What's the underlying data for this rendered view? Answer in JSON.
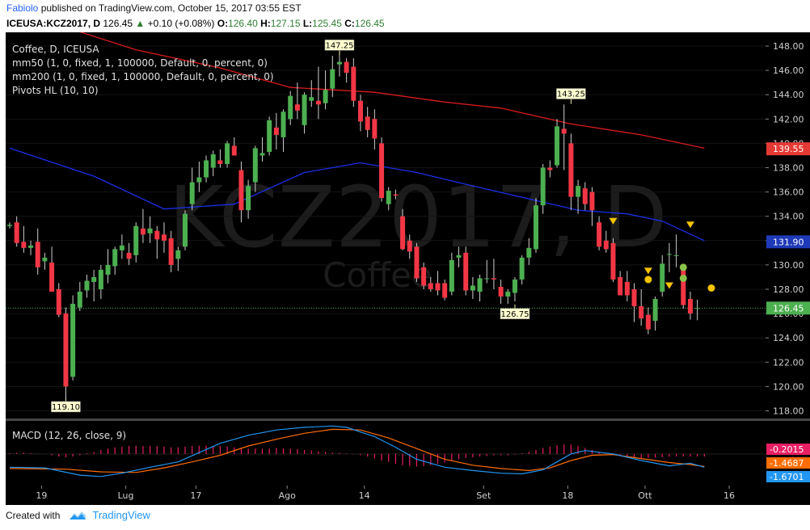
{
  "header": {
    "author": "Fabiolo",
    "published": "published on TradingView.com, October 15, 2017 03:55 EST",
    "symbol": "ICEUSA:KCZ2017, D",
    "last": "126.45",
    "change_arrow": "▲",
    "change": "+0.10 (+0.08%)",
    "o_label": "O:",
    "o": "126.40",
    "h_label": "H:",
    "h": "127.15",
    "l_label": "L:",
    "l": "125.45",
    "c_label": "C:",
    "c": "126.45"
  },
  "legend": {
    "line1": "Coffee, D, ICEUSA",
    "line2": "mm50 (1, 0, fixed, 1, 100000, Default, 0, percent, 0)",
    "line3": "mm200 (1, 0, fixed, 1, 100000, Default, 0, percent, 0)",
    "line4": "Pivots HL (10, 10)"
  },
  "watermark": {
    "symbol": "KCZ2017, D",
    "name": "Coffee"
  },
  "macd_label": "MACD (12, 26, close, 9)",
  "footer": {
    "created_with": "Created with",
    "brand": "TradingView"
  },
  "colors": {
    "background": "#000000",
    "up": "#4caf50",
    "down": "#f23645",
    "mm50": "#1a2ee8",
    "mm200": "#d81b1b",
    "macd_line": "#2196f3",
    "signal_line": "#ff6d00",
    "histogram": "#e91e63",
    "pivot_high": "#f5c400",
    "pivot_low": "#8bc34a"
  },
  "chart_data": {
    "type": "candlestick",
    "title": "Coffee, D, ICEUSA",
    "ylim": [
      117.5,
      149
    ],
    "y_ticks": [
      "148.00",
      "146.00",
      "144.00",
      "142.00",
      "140.00",
      "138.00",
      "136.00",
      "134.00",
      "132.00",
      "130.00",
      "128.00",
      "126.00",
      "124.00",
      "122.00",
      "120.00",
      "118.00"
    ],
    "x_ticks": [
      "19",
      "Lug",
      "17",
      "Ago",
      "14",
      "Set",
      "18",
      "Ott",
      "16"
    ],
    "candles": [
      {
        "o": 133.2,
        "h": 133.5,
        "l": 133.0,
        "c": 133.3
      },
      {
        "o": 133.5,
        "h": 134.0,
        "l": 131.5,
        "c": 131.8
      },
      {
        "o": 131.9,
        "h": 133.2,
        "l": 131.0,
        "c": 131.4
      },
      {
        "o": 131.4,
        "h": 132.0,
        "l": 130.8,
        "c": 131.6
      },
      {
        "o": 131.9,
        "h": 133.0,
        "l": 129.2,
        "c": 129.8
      },
      {
        "o": 130.3,
        "h": 131.0,
        "l": 129.6,
        "c": 130.6
      },
      {
        "o": 130.2,
        "h": 131.5,
        "l": 128.0,
        "c": 127.8
      },
      {
        "o": 128.0,
        "h": 128.5,
        "l": 125.7,
        "c": 125.9
      },
      {
        "o": 126.0,
        "h": 126.5,
        "l": 119.1,
        "c": 120.0
      },
      {
        "o": 120.8,
        "h": 127.5,
        "l": 120.5,
        "c": 126.8
      },
      {
        "o": 126.5,
        "h": 128.6,
        "l": 126.2,
        "c": 127.8
      },
      {
        "o": 127.9,
        "h": 129.2,
        "l": 127.3,
        "c": 128.7
      },
      {
        "o": 128.6,
        "h": 129.6,
        "l": 127.0,
        "c": 129.0
      },
      {
        "o": 128.0,
        "h": 130.0,
        "l": 127.2,
        "c": 129.6
      },
      {
        "o": 129.2,
        "h": 131.3,
        "l": 128.5,
        "c": 130.0
      },
      {
        "o": 129.9,
        "h": 131.5,
        "l": 129.2,
        "c": 131.3
      },
      {
        "o": 131.2,
        "h": 132.5,
        "l": 130.5,
        "c": 131.6
      },
      {
        "o": 131.0,
        "h": 131.8,
        "l": 130.0,
        "c": 130.5
      },
      {
        "o": 130.8,
        "h": 133.5,
        "l": 130.2,
        "c": 133.2
      },
      {
        "o": 133.0,
        "h": 134.6,
        "l": 131.8,
        "c": 132.5
      },
      {
        "o": 132.6,
        "h": 134.0,
        "l": 131.8,
        "c": 133.0
      },
      {
        "o": 132.8,
        "h": 133.2,
        "l": 130.5,
        "c": 132.1
      },
      {
        "o": 132.5,
        "h": 133.5,
        "l": 131.0,
        "c": 132.0
      },
      {
        "o": 132.2,
        "h": 132.8,
        "l": 129.4,
        "c": 130.0
      },
      {
        "o": 130.5,
        "h": 131.5,
        "l": 129.5,
        "c": 131.2
      },
      {
        "o": 131.5,
        "h": 134.5,
        "l": 131.2,
        "c": 134.2
      },
      {
        "o": 135.0,
        "h": 138.0,
        "l": 134.5,
        "c": 136.8
      },
      {
        "o": 136.8,
        "h": 138.5,
        "l": 136.0,
        "c": 137.2
      },
      {
        "o": 137.2,
        "h": 139.0,
        "l": 136.8,
        "c": 138.6
      },
      {
        "o": 138.0,
        "h": 139.4,
        "l": 137.3,
        "c": 139.1
      },
      {
        "o": 138.6,
        "h": 139.5,
        "l": 138.0,
        "c": 138.3
      },
      {
        "o": 138.3,
        "h": 140.2,
        "l": 138.0,
        "c": 140.0
      },
      {
        "o": 139.8,
        "h": 140.5,
        "l": 139.0,
        "c": 139.0
      },
      {
        "o": 137.8,
        "h": 138.5,
        "l": 133.5,
        "c": 134.5
      },
      {
        "o": 134.5,
        "h": 137.0,
        "l": 133.8,
        "c": 136.5
      },
      {
        "o": 136.8,
        "h": 139.8,
        "l": 136.0,
        "c": 139.6
      },
      {
        "o": 139.0,
        "h": 140.5,
        "l": 138.5,
        "c": 139.2
      },
      {
        "o": 139.3,
        "h": 142.2,
        "l": 139.0,
        "c": 141.9
      },
      {
        "o": 141.3,
        "h": 142.5,
        "l": 139.5,
        "c": 140.7
      },
      {
        "o": 140.5,
        "h": 142.8,
        "l": 139.3,
        "c": 142.6
      },
      {
        "o": 142.0,
        "h": 144.3,
        "l": 141.5,
        "c": 143.9
      },
      {
        "o": 143.2,
        "h": 145.0,
        "l": 142.0,
        "c": 142.7
      },
      {
        "o": 141.5,
        "h": 144.2,
        "l": 140.8,
        "c": 144.0
      },
      {
        "o": 143.5,
        "h": 145.2,
        "l": 143.0,
        "c": 143.8
      },
      {
        "o": 143.5,
        "h": 146.3,
        "l": 142.0,
        "c": 143.2
      },
      {
        "o": 143.3,
        "h": 146.0,
        "l": 142.8,
        "c": 144.4
      },
      {
        "o": 144.5,
        "h": 147.2,
        "l": 143.8,
        "c": 146.1
      },
      {
        "o": 146.5,
        "h": 147.5,
        "l": 145.5,
        "c": 146.7
      },
      {
        "o": 146.7,
        "h": 147.0,
        "l": 145.0,
        "c": 145.8
      },
      {
        "o": 146.3,
        "h": 147.0,
        "l": 143.0,
        "c": 143.5
      },
      {
        "o": 143.5,
        "h": 144.0,
        "l": 141.0,
        "c": 141.8
      },
      {
        "o": 142.2,
        "h": 143.0,
        "l": 140.5,
        "c": 141.1
      },
      {
        "o": 142.0,
        "h": 142.8,
        "l": 139.5,
        "c": 140.4
      },
      {
        "o": 140.0,
        "h": 140.5,
        "l": 135.2,
        "c": 135.5
      },
      {
        "o": 135.0,
        "h": 136.4,
        "l": 134.5,
        "c": 136.1
      },
      {
        "o": 135.8,
        "h": 136.2,
        "l": 135.4,
        "c": 135.7
      },
      {
        "o": 134.0,
        "h": 134.6,
        "l": 131.2,
        "c": 131.3
      },
      {
        "o": 132.0,
        "h": 132.5,
        "l": 130.5,
        "c": 131.1
      },
      {
        "o": 131.5,
        "h": 131.8,
        "l": 128.6,
        "c": 128.9
      },
      {
        "o": 129.8,
        "h": 130.2,
        "l": 128.0,
        "c": 128.3
      },
      {
        "o": 128.5,
        "h": 129.0,
        "l": 127.8,
        "c": 128.0
      },
      {
        "o": 128.5,
        "h": 129.5,
        "l": 127.5,
        "c": 127.9
      },
      {
        "o": 128.5,
        "h": 128.8,
        "l": 127.1,
        "c": 127.3
      },
      {
        "o": 127.8,
        "h": 131.0,
        "l": 127.5,
        "c": 130.4
      },
      {
        "o": 130.6,
        "h": 131.5,
        "l": 129.8,
        "c": 130.8
      },
      {
        "o": 131.0,
        "h": 131.5,
        "l": 127.5,
        "c": 127.9
      },
      {
        "o": 127.9,
        "h": 129.0,
        "l": 127.2,
        "c": 128.3
      },
      {
        "o": 127.8,
        "h": 129.2,
        "l": 127.0,
        "c": 128.9
      },
      {
        "o": 128.9,
        "h": 130.4,
        "l": 128.5,
        "c": 128.9
      },
      {
        "o": 128.9,
        "h": 130.5,
        "l": 128.0,
        "c": 128.8
      },
      {
        "o": 128.2,
        "h": 128.8,
        "l": 126.8,
        "c": 127.4
      },
      {
        "o": 127.4,
        "h": 128.0,
        "l": 126.8,
        "c": 127.8
      },
      {
        "o": 127.7,
        "h": 129.0,
        "l": 127.0,
        "c": 128.8
      },
      {
        "o": 128.8,
        "h": 130.8,
        "l": 128.4,
        "c": 130.6
      },
      {
        "o": 130.6,
        "h": 132.2,
        "l": 130.0,
        "c": 131.4
      },
      {
        "o": 131.3,
        "h": 135.5,
        "l": 131.0,
        "c": 134.9
      },
      {
        "o": 134.9,
        "h": 138.3,
        "l": 134.2,
        "c": 138.0
      },
      {
        "o": 138.0,
        "h": 138.6,
        "l": 137.2,
        "c": 137.8
      },
      {
        "o": 138.2,
        "h": 142.0,
        "l": 138.0,
        "c": 141.4
      },
      {
        "o": 141.2,
        "h": 143.2,
        "l": 137.8,
        "c": 140.8
      },
      {
        "o": 140.0,
        "h": 140.8,
        "l": 134.5,
        "c": 135.6
      },
      {
        "o": 135.6,
        "h": 137.0,
        "l": 134.2,
        "c": 136.5
      },
      {
        "o": 136.3,
        "h": 136.8,
        "l": 134.5,
        "c": 135.0
      },
      {
        "o": 136.0,
        "h": 136.4,
        "l": 133.2,
        "c": 134.5
      },
      {
        "o": 133.5,
        "h": 134.0,
        "l": 131.2,
        "c": 131.5
      },
      {
        "o": 132.0,
        "h": 132.8,
        "l": 131.0,
        "c": 131.3
      },
      {
        "o": 131.8,
        "h": 132.2,
        "l": 128.6,
        "c": 128.8
      },
      {
        "o": 129.0,
        "h": 129.5,
        "l": 127.5,
        "c": 127.5
      },
      {
        "o": 128.6,
        "h": 129.5,
        "l": 127.0,
        "c": 127.5
      },
      {
        "o": 128.0,
        "h": 128.5,
        "l": 125.3,
        "c": 126.6
      },
      {
        "o": 126.6,
        "h": 128.0,
        "l": 125.0,
        "c": 125.6
      },
      {
        "o": 125.9,
        "h": 126.5,
        "l": 124.3,
        "c": 124.7
      },
      {
        "o": 125.4,
        "h": 127.4,
        "l": 124.6,
        "c": 127.2
      },
      {
        "o": 127.8,
        "h": 130.8,
        "l": 127.4,
        "c": 130.1
      },
      {
        "o": 130.9,
        "h": 131.8,
        "l": 129.4,
        "c": 130.9
      },
      {
        "o": 130.8,
        "h": 132.5,
        "l": 129.8,
        "c": 130.8
      },
      {
        "o": 129.9,
        "h": 130.1,
        "l": 126.4,
        "c": 126.7
      },
      {
        "o": 127.2,
        "h": 127.8,
        "l": 125.5,
        "c": 126.0
      },
      {
        "o": 126.4,
        "h": 127.15,
        "l": 125.45,
        "c": 126.45
      }
    ],
    "mm50": [
      [
        0,
        139.6
      ],
      [
        12,
        137.3
      ],
      [
        22,
        134.6
      ],
      [
        32,
        135.0
      ],
      [
        42,
        137.6
      ],
      [
        50,
        138.4
      ],
      [
        58,
        137.6
      ],
      [
        66,
        136.5
      ],
      [
        75,
        135.3
      ],
      [
        81,
        134.5
      ],
      [
        88,
        134.2
      ],
      [
        93,
        133.6
      ],
      [
        99,
        132.0
      ]
    ],
    "mm200": [
      [
        0,
        151
      ],
      [
        18,
        147.7
      ],
      [
        30,
        146.2
      ],
      [
        40,
        144.6
      ],
      [
        52,
        144.2
      ],
      [
        62,
        143.4
      ],
      [
        70,
        142.9
      ],
      [
        80,
        141.6
      ],
      [
        90,
        140.7
      ],
      [
        99,
        139.6
      ]
    ],
    "pivots_labels": [
      {
        "i": 8,
        "price": 119.1,
        "text": "119.10",
        "pos": "below"
      },
      {
        "i": 47,
        "price": 147.25,
        "text": "147.25",
        "pos": "above"
      },
      {
        "i": 72,
        "price": 126.75,
        "text": "126.75",
        "pos": "below"
      },
      {
        "i": 80,
        "price": 143.25,
        "text": "143.25",
        "pos": "above"
      }
    ],
    "pivot_markers": [
      {
        "i": 86,
        "price": 133.6,
        "kind": "down"
      },
      {
        "i": 91,
        "price": 129.5,
        "kind": "down"
      },
      {
        "i": 91,
        "price": 128.8,
        "kind": "dot-yellow"
      },
      {
        "i": 94,
        "price": 128.3,
        "kind": "down"
      },
      {
        "i": 96,
        "price": 129.8,
        "kind": "dot-green"
      },
      {
        "i": 96,
        "price": 128.9,
        "kind": "dot-green"
      },
      {
        "i": 97,
        "price": 133.3,
        "kind": "down"
      },
      {
        "i": 100,
        "price": 128.1,
        "kind": "dot-yellow"
      }
    ],
    "price_tags": [
      {
        "price": 139.55,
        "text": "139.55",
        "color": "#e53935"
      },
      {
        "price": 131.9,
        "text": "131.90",
        "color": "#1e3ab8"
      },
      {
        "price": 126.45,
        "text": "126.45",
        "color": "#4caf50"
      }
    ],
    "last_price": 126.45,
    "macd": {
      "ylim": [
        -2.2,
        2.3
      ],
      "tags": [
        {
          "value": -0.2015,
          "text": "-0.2015",
          "color": "#e91e63"
        },
        {
          "value": -1.4687,
          "text": "-1.4687",
          "color": "#ff6d00"
        },
        {
          "value": -1.6701,
          "text": "-1.6701",
          "color": "#2196f3"
        }
      ],
      "macd_line": [
        [
          0,
          -1.0
        ],
        [
          5,
          -1.05
        ],
        [
          10,
          -1.6
        ],
        [
          13,
          -1.7
        ],
        [
          16,
          -1.45
        ],
        [
          20,
          -1.0
        ],
        [
          24,
          -0.6
        ],
        [
          27,
          0.1
        ],
        [
          30,
          0.8
        ],
        [
          34,
          1.4
        ],
        [
          38,
          1.8
        ],
        [
          42,
          2.0
        ],
        [
          46,
          2.1
        ],
        [
          48,
          2.0
        ],
        [
          52,
          1.3
        ],
        [
          55,
          0.5
        ],
        [
          58,
          -0.4
        ],
        [
          62,
          -1.0
        ],
        [
          66,
          -1.25
        ],
        [
          70,
          -1.45
        ],
        [
          73,
          -1.5
        ],
        [
          76,
          -1.2
        ],
        [
          78,
          -0.6
        ],
        [
          80,
          0.0
        ],
        [
          82,
          0.25
        ],
        [
          86,
          0.0
        ],
        [
          90,
          -0.5
        ],
        [
          94,
          -0.9
        ],
        [
          97,
          -0.7
        ],
        [
          99,
          -1.0
        ]
      ],
      "signal_line": [
        [
          0,
          -1.1
        ],
        [
          8,
          -1.15
        ],
        [
          13,
          -1.35
        ],
        [
          18,
          -1.4
        ],
        [
          22,
          -1.05
        ],
        [
          26,
          -0.6
        ],
        [
          30,
          -0.1
        ],
        [
          34,
          0.6
        ],
        [
          38,
          1.1
        ],
        [
          42,
          1.55
        ],
        [
          46,
          1.85
        ],
        [
          50,
          1.8
        ],
        [
          54,
          1.2
        ],
        [
          58,
          0.4
        ],
        [
          62,
          -0.4
        ],
        [
          66,
          -0.85
        ],
        [
          70,
          -1.1
        ],
        [
          74,
          -1.25
        ],
        [
          77,
          -1.05
        ],
        [
          80,
          -0.5
        ],
        [
          83,
          -0.1
        ],
        [
          86,
          -0.05
        ],
        [
          90,
          -0.35
        ],
        [
          94,
          -0.65
        ],
        [
          97,
          -0.8
        ],
        [
          99,
          -0.95
        ]
      ],
      "histogram": [
        0.05,
        0.08,
        0.1,
        0.05,
        0.02,
        0.0,
        -0.1,
        -0.2,
        -0.25,
        -0.2,
        -0.1,
        0.05,
        0.15,
        0.3,
        0.4,
        0.5,
        0.55,
        0.6,
        0.62,
        0.6,
        0.6,
        0.58,
        0.55,
        0.5,
        0.5,
        0.55,
        0.6,
        0.62,
        0.62,
        0.6,
        0.58,
        0.56,
        0.5,
        0.45,
        0.4,
        0.4,
        0.4,
        0.42,
        0.45,
        0.42,
        0.4,
        0.36,
        0.3,
        0.26,
        0.2,
        0.15,
        0.1,
        0.08,
        0.04,
        -0.02,
        -0.1,
        -0.2,
        -0.35,
        -0.5,
        -0.6,
        -0.75,
        -0.85,
        -0.9,
        -0.95,
        -0.92,
        -0.85,
        -0.75,
        -0.65,
        -0.5,
        -0.4,
        -0.3,
        -0.25,
        -0.2,
        -0.15,
        -0.1,
        -0.1,
        -0.1,
        -0.05,
        0.05,
        0.15,
        0.3,
        0.45,
        0.55,
        0.65,
        0.72,
        0.7,
        0.6,
        0.45,
        0.3,
        0.15,
        0.05,
        -0.05,
        -0.15,
        -0.25,
        -0.3,
        -0.32,
        -0.3,
        -0.28,
        -0.25,
        -0.22,
        -0.2,
        -0.2,
        -0.2,
        -0.2,
        -0.2
      ]
    }
  }
}
